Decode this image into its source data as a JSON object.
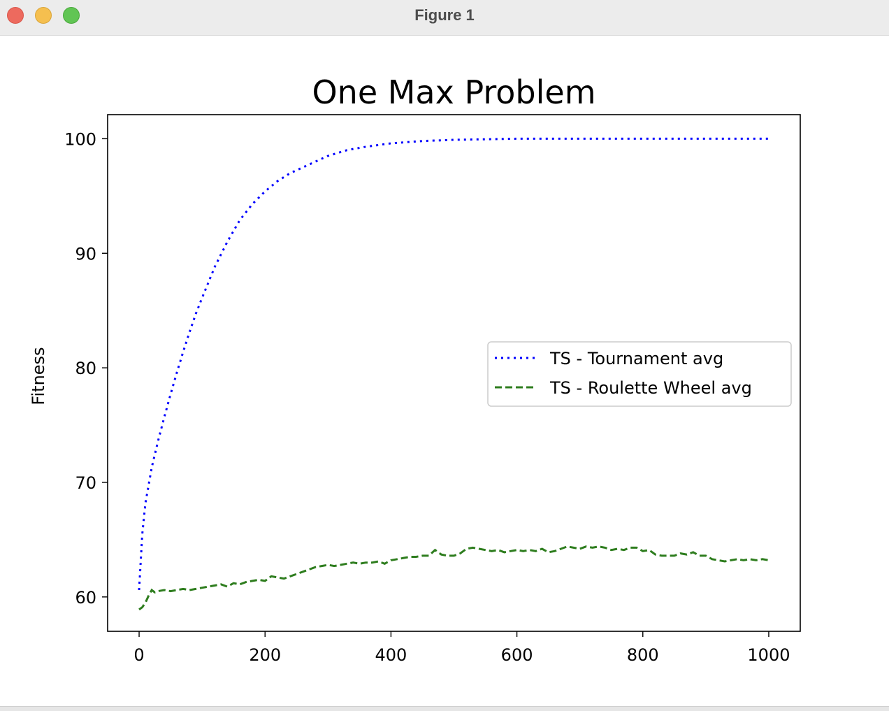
{
  "window": {
    "title": "Figure 1"
  },
  "chart_data": {
    "type": "line",
    "title": "One Max Problem",
    "xlabel": "",
    "ylabel": "Fitness",
    "xlim": [
      -50,
      1050
    ],
    "ylim": [
      57,
      102.1
    ],
    "x_ticks": [
      0,
      200,
      400,
      600,
      800,
      1000
    ],
    "y_ticks": [
      60,
      70,
      80,
      90,
      100
    ],
    "grid": false,
    "legend_position": "center-right",
    "series": [
      {
        "name": "TS - Tournament avg",
        "color": "#0000ff",
        "style": "dotted",
        "x": [
          0,
          5,
          10,
          20,
          30,
          40,
          50,
          60,
          70,
          80,
          90,
          100,
          120,
          140,
          160,
          180,
          200,
          220,
          240,
          260,
          280,
          300,
          330,
          360,
          400,
          450,
          500,
          550,
          600,
          700,
          800,
          900,
          1000
        ],
        "y": [
          60.6,
          65.5,
          68.2,
          71.3,
          73.6,
          75.7,
          77.7,
          79.6,
          81.4,
          83.1,
          84.7,
          86.1,
          88.8,
          91.0,
          92.9,
          94.3,
          95.4,
          96.3,
          97.0,
          97.5,
          98.0,
          98.5,
          99.0,
          99.3,
          99.6,
          99.8,
          99.9,
          99.95,
          100.0,
          100.0,
          100.0,
          100.0,
          100.0
        ]
      },
      {
        "name": "TS - Roulette Wheel avg",
        "color": "#2e7d1e",
        "style": "dashed",
        "x": [
          0,
          5,
          10,
          15,
          20,
          25,
          30,
          40,
          50,
          60,
          70,
          80,
          90,
          100,
          110,
          120,
          130,
          140,
          150,
          160,
          170,
          180,
          190,
          200,
          210,
          220,
          230,
          240,
          250,
          260,
          270,
          280,
          290,
          300,
          310,
          320,
          330,
          340,
          350,
          360,
          370,
          380,
          390,
          400,
          410,
          420,
          430,
          440,
          450,
          460,
          470,
          480,
          490,
          500,
          510,
          520,
          530,
          540,
          550,
          560,
          570,
          580,
          590,
          600,
          610,
          620,
          630,
          640,
          650,
          660,
          670,
          680,
          690,
          700,
          710,
          720,
          730,
          740,
          750,
          760,
          770,
          780,
          790,
          800,
          810,
          820,
          830,
          840,
          850,
          860,
          870,
          880,
          890,
          900,
          910,
          920,
          930,
          940,
          950,
          960,
          970,
          980,
          990,
          1000
        ],
        "y": [
          58.9,
          59.1,
          59.5,
          60.1,
          60.6,
          60.4,
          60.5,
          60.6,
          60.5,
          60.6,
          60.7,
          60.6,
          60.7,
          60.8,
          60.9,
          61.0,
          61.1,
          60.9,
          61.2,
          61.1,
          61.3,
          61.4,
          61.5,
          61.4,
          61.8,
          61.7,
          61.6,
          61.8,
          62.0,
          62.2,
          62.4,
          62.6,
          62.7,
          62.8,
          62.7,
          62.8,
          62.9,
          63.0,
          62.9,
          63.0,
          63.0,
          63.1,
          62.9,
          63.2,
          63.3,
          63.4,
          63.5,
          63.5,
          63.6,
          63.6,
          64.1,
          63.7,
          63.6,
          63.6,
          63.8,
          64.2,
          64.3,
          64.2,
          64.1,
          64.0,
          64.1,
          63.9,
          64.0,
          64.1,
          64.0,
          64.1,
          64.0,
          64.2,
          63.9,
          64.0,
          64.2,
          64.4,
          64.3,
          64.2,
          64.4,
          64.3,
          64.4,
          64.3,
          64.1,
          64.2,
          64.1,
          64.3,
          64.3,
          64.0,
          64.1,
          63.7,
          63.6,
          63.6,
          63.6,
          63.8,
          63.7,
          63.9,
          63.6,
          63.6,
          63.3,
          63.2,
          63.1,
          63.2,
          63.3,
          63.2,
          63.3,
          63.2,
          63.3,
          63.2
        ]
      }
    ]
  }
}
